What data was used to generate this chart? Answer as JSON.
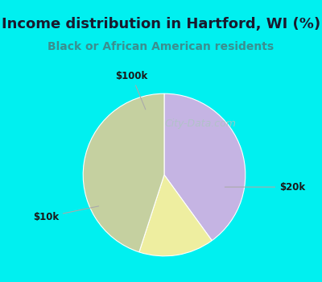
{
  "title": "Income distribution in Hartford, WI (%)",
  "subtitle": "Black or African American residents",
  "slices": [
    {
      "label": "$20k",
      "value": 40,
      "color": "#c5b4e3"
    },
    {
      "label": "$100k",
      "value": 15,
      "color": "#eeeea0"
    },
    {
      "label": "$10k",
      "value": 45,
      "color": "#c5d0a0"
    }
  ],
  "bg_color": "#00f0f0",
  "chart_bg_color_tl": "#d8f5ec",
  "chart_bg_color_br": "#c8e8e0",
  "title_color": "#1a1a2e",
  "subtitle_color": "#3a8f8f",
  "label_color": "#1a1a1a",
  "connector_color": "#aaaaaa",
  "watermark_text": "City-Data.com",
  "watermark_color": "#aec4c4",
  "startangle": 90,
  "title_fontsize": 13,
  "subtitle_fontsize": 10,
  "label_fontsize": 8.5
}
